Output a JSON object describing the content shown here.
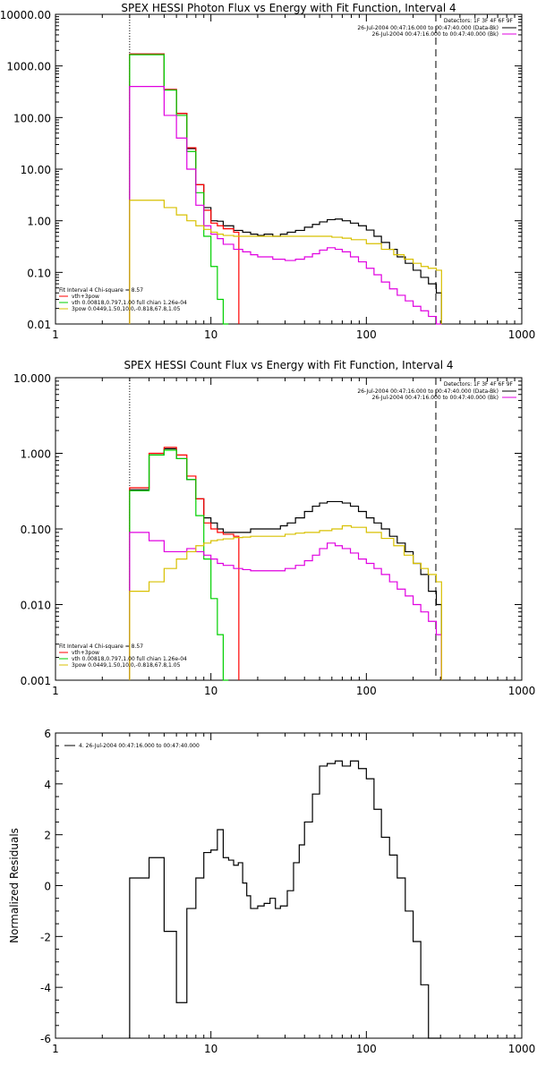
{
  "chart_data": [
    {
      "type": "line",
      "title": "SPEX HESSI Photon Flux vs Energy with Fit Function, Interval 4",
      "xscale": "log",
      "yscale": "log",
      "xlim": [
        1,
        1000
      ],
      "ylim": [
        0.01,
        10000
      ],
      "xtick_labels": [
        "1",
        "10",
        "100",
        "1000"
      ],
      "ytick_labels": [
        "0.01",
        "0.10",
        "1.00",
        "10.00",
        "100.00",
        "1000.00",
        "10000.00"
      ],
      "xlabel": "",
      "ylabel": "",
      "legend_top": {
        "header": "Detectors: 1F 3F 4F 6F 9F",
        "entries": [
          {
            "text": "26-Jul-2004 00:47:16.000 to 00:47:40.000 (Data-Bk)",
            "color": "#000000"
          },
          {
            "text": "26-Jul-2004 00:47:16.000 to 00:47:40.000 (Bk)",
            "color": "#e000e0"
          }
        ]
      },
      "legend_bottom": {
        "header": "Fit Interval 4   Chi-square = 8.57",
        "entries": [
          {
            "text": "vth+3pow",
            "color": "#ff0000"
          },
          {
            "text": "vth 0.00818,0.797,1.00  full chian 1.26e-04",
            "color": "#00d000"
          },
          {
            "text": "3pow 0.0449,1.50,10.0,-0.818,67.8,1.05",
            "color": "#d8c000"
          }
        ]
      },
      "vlines": [
        {
          "x": 3.0,
          "style": "dotted"
        },
        {
          "x": 280,
          "style": "dashed"
        }
      ],
      "series": [
        {
          "color": "#000000",
          "x": [
            3.0,
            4.0,
            5.0,
            6.0,
            7.0,
            8.0,
            9.0,
            10,
            11,
            12,
            14,
            16,
            18,
            20,
            22,
            25,
            28,
            31,
            35,
            40,
            45,
            50,
            56,
            63,
            70,
            79,
            89,
            100,
            112,
            125,
            141,
            158,
            178,
            200,
            224,
            251,
            282
          ],
          "values": [
            1700,
            1700,
            350,
            120,
            25,
            5,
            1.8,
            1.0,
            0.98,
            0.8,
            0.65,
            0.6,
            0.55,
            0.52,
            0.55,
            0.5,
            0.55,
            0.6,
            0.65,
            0.75,
            0.85,
            0.95,
            1.05,
            1.08,
            1.0,
            0.9,
            0.8,
            0.66,
            0.5,
            0.38,
            0.28,
            0.2,
            0.15,
            0.11,
            0.08,
            0.06,
            0.04
          ]
        },
        {
          "color": "#ff0000",
          "x": [
            3.0,
            4.0,
            5.0,
            6.0,
            7.0,
            8.0,
            9.0,
            10,
            11,
            12,
            14
          ],
          "values": [
            1700,
            1700,
            350,
            120,
            26,
            5,
            1.6,
            0.9,
            0.8,
            0.7,
            0.6
          ]
        },
        {
          "color": "#00d000",
          "x": [
            3.0,
            4.0,
            5.0,
            6.0,
            7.0,
            8.0,
            9.0,
            10,
            11,
            12
          ],
          "values": [
            1650,
            1650,
            340,
            110,
            22,
            3.5,
            0.5,
            0.13,
            0.03,
            0.01
          ]
        },
        {
          "color": "#e000e0",
          "x": [
            3.0,
            4.0,
            5.0,
            6.0,
            7.0,
            8.0,
            9.0,
            10,
            11,
            12,
            14,
            16,
            18,
            20,
            25,
            30,
            35,
            40,
            45,
            50,
            56,
            63,
            70,
            79,
            89,
            100,
            112,
            125,
            141,
            158,
            178,
            200,
            224,
            251,
            282
          ],
          "values": [
            400,
            400,
            110,
            40,
            10,
            2.0,
            0.8,
            0.55,
            0.45,
            0.35,
            0.28,
            0.25,
            0.22,
            0.2,
            0.18,
            0.17,
            0.18,
            0.2,
            0.23,
            0.27,
            0.3,
            0.28,
            0.25,
            0.2,
            0.16,
            0.12,
            0.09,
            0.065,
            0.048,
            0.036,
            0.028,
            0.022,
            0.018,
            0.014,
            0.01
          ]
        },
        {
          "color": "#d8c000",
          "x": [
            3.0,
            4.0,
            5.0,
            6.0,
            7.0,
            8.0,
            9.0,
            10,
            11,
            12,
            14,
            16,
            18,
            20,
            25,
            30,
            35,
            40,
            50,
            60,
            70,
            80,
            100,
            125,
            150,
            175,
            200,
            225,
            250,
            282
          ],
          "values": [
            2.5,
            2.5,
            1.8,
            1.3,
            1.0,
            0.8,
            0.68,
            0.6,
            0.55,
            0.52,
            0.5,
            0.5,
            0.5,
            0.5,
            0.5,
            0.5,
            0.5,
            0.5,
            0.5,
            0.48,
            0.46,
            0.43,
            0.36,
            0.28,
            0.22,
            0.18,
            0.15,
            0.13,
            0.12,
            0.11
          ]
        }
      ]
    },
    {
      "type": "line",
      "title": "SPEX HESSI Count Flux vs Energy with Fit Function, Interval 4",
      "xscale": "log",
      "yscale": "log",
      "xlim": [
        1,
        1000
      ],
      "ylim": [
        0.001,
        10
      ],
      "xtick_labels": [
        "1",
        "10",
        "100",
        "1000"
      ],
      "ytick_labels": [
        "0.001",
        "0.010",
        "0.100",
        "1.000",
        "10.000"
      ],
      "xlabel": "",
      "ylabel": "",
      "legend_top": {
        "header": "Detectors: 1F 3F 4F 6F 9F",
        "entries": [
          {
            "text": "26-Jul-2004 00:47:16.000 to 00:47:40.000 (Data-Bk)",
            "color": "#000000"
          },
          {
            "text": "26-Jul-2004 00:47:16.000 to 00:47:40.000 (Bk)",
            "color": "#e000e0"
          }
        ]
      },
      "legend_bottom": {
        "header": "Fit Interval 4   Chi-square = 8.57",
        "entries": [
          {
            "text": "vth+3pow",
            "color": "#ff0000"
          },
          {
            "text": "vth 0.00818,0.797,1.00  full chian 1.26e-04",
            "color": "#00d000"
          },
          {
            "text": "3pow 0.0449,1.50,10.0,-0.818,67.8,1.05",
            "color": "#d8c000"
          }
        ]
      },
      "vlines": [
        {
          "x": 3.0,
          "style": "dotted"
        },
        {
          "x": 280,
          "style": "dashed"
        }
      ],
      "series": [
        {
          "color": "#000000",
          "x": [
            3.0,
            4.0,
            5.0,
            6.0,
            7.0,
            8.0,
            9.0,
            10,
            11,
            12,
            14,
            16,
            18,
            20,
            22,
            25,
            28,
            31,
            35,
            40,
            45,
            50,
            56,
            63,
            70,
            79,
            89,
            100,
            112,
            125,
            141,
            158,
            178,
            200,
            224,
            251,
            282
          ],
          "values": [
            0.33,
            0.95,
            1.15,
            0.85,
            0.45,
            0.25,
            0.14,
            0.12,
            0.1,
            0.09,
            0.09,
            0.09,
            0.1,
            0.1,
            0.1,
            0.1,
            0.11,
            0.12,
            0.14,
            0.17,
            0.2,
            0.22,
            0.23,
            0.23,
            0.22,
            0.2,
            0.17,
            0.14,
            0.12,
            0.1,
            0.08,
            0.065,
            0.05,
            0.035,
            0.025,
            0.015,
            0.01
          ]
        },
        {
          "color": "#ff0000",
          "x": [
            3.0,
            4.0,
            5.0,
            6.0,
            7.0,
            8.0,
            9.0,
            10,
            11,
            12,
            14
          ],
          "values": [
            0.35,
            1.0,
            1.2,
            0.95,
            0.5,
            0.25,
            0.12,
            0.1,
            0.09,
            0.085,
            0.08
          ]
        },
        {
          "color": "#00d000",
          "x": [
            3.0,
            4.0,
            5.0,
            6.0,
            7.0,
            8.0,
            9.0,
            10,
            11,
            12
          ],
          "values": [
            0.32,
            0.95,
            1.1,
            0.85,
            0.45,
            0.15,
            0.04,
            0.012,
            0.004,
            0.001
          ]
        },
        {
          "color": "#e000e0",
          "x": [
            3.0,
            4.0,
            5.0,
            6.0,
            7.0,
            8.0,
            9.0,
            10,
            11,
            12,
            14,
            16,
            18,
            20,
            25,
            30,
            35,
            40,
            45,
            50,
            56,
            63,
            70,
            79,
            89,
            100,
            112,
            125,
            141,
            158,
            178,
            200,
            224,
            251,
            282
          ],
          "values": [
            0.09,
            0.07,
            0.05,
            0.05,
            0.055,
            0.05,
            0.045,
            0.04,
            0.035,
            0.033,
            0.03,
            0.029,
            0.028,
            0.028,
            0.028,
            0.03,
            0.033,
            0.038,
            0.045,
            0.055,
            0.065,
            0.06,
            0.055,
            0.048,
            0.04,
            0.035,
            0.03,
            0.025,
            0.02,
            0.016,
            0.013,
            0.01,
            0.008,
            0.006,
            0.004
          ]
        },
        {
          "color": "#d8c000",
          "x": [
            3.0,
            4.0,
            5.0,
            6.0,
            7.0,
            8.0,
            9.0,
            10,
            11,
            12,
            14,
            16,
            18,
            20,
            25,
            30,
            35,
            40,
            50,
            60,
            70,
            80,
            100,
            125,
            150,
            175,
            200,
            225,
            250,
            282
          ],
          "values": [
            0.015,
            0.02,
            0.03,
            0.04,
            0.05,
            0.06,
            0.065,
            0.07,
            0.072,
            0.074,
            0.077,
            0.078,
            0.08,
            0.08,
            0.08,
            0.085,
            0.088,
            0.09,
            0.095,
            0.1,
            0.11,
            0.105,
            0.09,
            0.075,
            0.06,
            0.045,
            0.035,
            0.03,
            0.025,
            0.02
          ]
        }
      ]
    },
    {
      "type": "line",
      "title": "",
      "xscale": "log",
      "yscale": "linear",
      "xlim": [
        1,
        1000
      ],
      "ylim": [
        -6,
        6
      ],
      "xtick_labels": [
        "1",
        "10",
        "100",
        "1000"
      ],
      "ytick_labels": [
        "-6",
        "-4",
        "-2",
        "0",
        "2",
        "4",
        "6"
      ],
      "xlabel": "",
      "ylabel": "Normalized Residuals",
      "legend_top": {
        "header": "",
        "entries": [
          {
            "text": "4. 26-Jul-2004 00:47:16.000 to 00:47:40.000",
            "color": "#000000"
          }
        ]
      },
      "vlines": [],
      "series": [
        {
          "color": "#000000",
          "x": [
            3.0,
            4.0,
            5.0,
            6.0,
            7.0,
            8.0,
            9.0,
            10,
            11,
            12,
            13,
            14,
            15,
            16,
            17,
            18,
            20,
            22,
            24,
            26,
            28,
            31,
            34,
            37,
            40,
            45,
            50,
            56,
            63,
            70,
            79,
            89,
            100,
            112,
            125,
            141,
            158,
            178,
            200,
            224,
            251,
            282
          ],
          "values": [
            0.3,
            1.1,
            -1.8,
            -4.6,
            -0.9,
            0.3,
            1.3,
            1.4,
            2.2,
            1.1,
            1.0,
            0.8,
            0.9,
            0.1,
            -0.4,
            -0.9,
            -0.8,
            -0.7,
            -0.5,
            -0.9,
            -0.8,
            -0.2,
            0.9,
            1.6,
            2.5,
            3.6,
            4.7,
            4.8,
            4.9,
            4.7,
            4.9,
            4.6,
            4.2,
            3.0,
            1.9,
            1.2,
            0.3,
            -1.0,
            -2.2,
            -3.9,
            -6.0,
            -6.0
          ]
        }
      ]
    }
  ]
}
